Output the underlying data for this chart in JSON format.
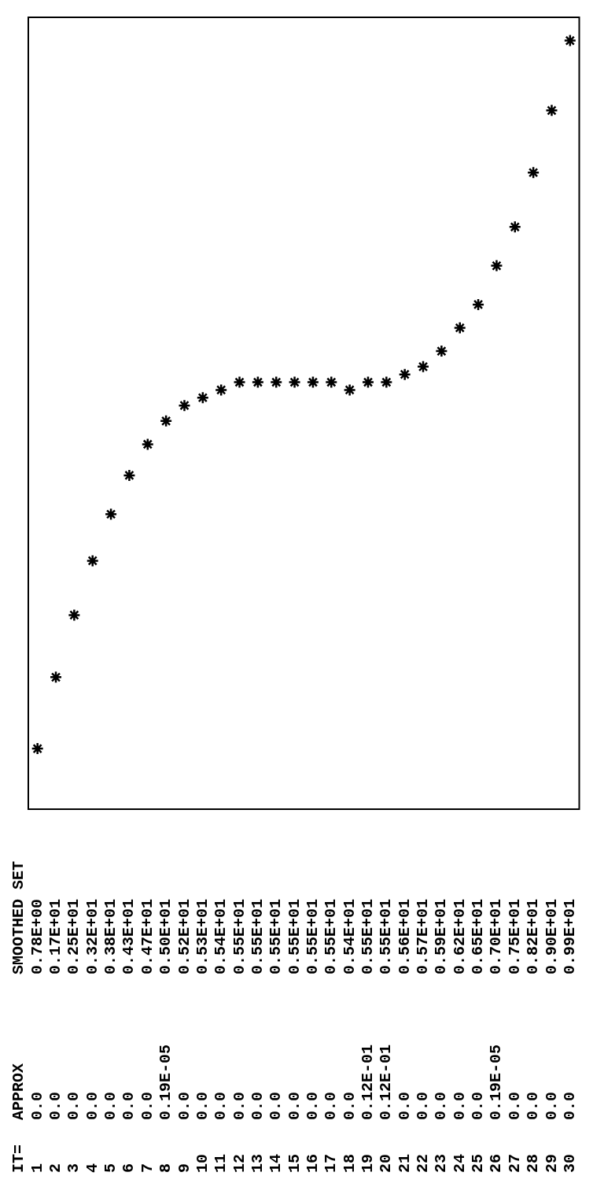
{
  "chart_data": {
    "type": "scatter",
    "categories": [
      "1",
      "2",
      "3",
      "4",
      "5",
      "6",
      "7",
      "8",
      "9",
      "10",
      "11",
      "12",
      "13",
      "14",
      "15",
      "16",
      "17",
      "18",
      "19",
      "20",
      "21",
      "22",
      "23",
      "24",
      "25",
      "26",
      "27",
      "28",
      "29",
      "30"
    ],
    "ylim": [
      0,
      10.2
    ],
    "marker": "cross",
    "annotations": [
      "IT=",
      "APPROX",
      "0.0",
      "0.0",
      "0.0",
      "0.0",
      "0.0",
      "0.0",
      "0.0",
      "0.19E-05",
      "0.0",
      "0.0",
      "0.0",
      "0.0",
      "0.0",
      "0.0",
      "0.0",
      "0.0",
      "0.0",
      "0.0",
      "0.12E-01",
      "0.12E-01",
      "0.0",
      "0.0",
      "0.0",
      "0.0",
      "0.0",
      "0.19E-05",
      "0.0",
      "0.0",
      "0.0",
      "0.0"
    ],
    "series": [
      {
        "name": "SMOOTHED SET",
        "color": "#000000",
        "values": [
          0.78,
          1.7,
          2.5,
          3.2,
          3.8,
          4.3,
          4.7,
          5.0,
          5.2,
          5.3,
          5.4,
          5.5,
          5.5,
          5.5,
          5.5,
          5.5,
          5.5,
          5.4,
          5.5,
          5.5,
          5.6,
          5.7,
          5.9,
          6.2,
          6.5,
          7.0,
          7.5,
          8.2,
          9.0,
          9.9
        ],
        "value_labels": [
          "0.78E+00",
          "0.17E+01",
          "0.25E+01",
          "0.32E+01",
          "0.38E+01",
          "0.43E+01",
          "0.47E+01",
          "0.50E+01",
          "0.52E+01",
          "0.53E+01",
          "0.54E+01",
          "0.55E+01",
          "0.55E+01",
          "0.55E+01",
          "0.55E+01",
          "0.55E+01",
          "0.55E+01",
          "0.54E+01",
          "0.55E+01",
          "0.55E+01",
          "0.56E+01",
          "0.57E+01",
          "0.59E+01",
          "0.62E+01",
          "0.65E+01",
          "0.70E+01",
          "0.75E+01",
          "0.82E+01",
          "0.90E+01",
          "0.99E+01"
        ]
      }
    ]
  }
}
